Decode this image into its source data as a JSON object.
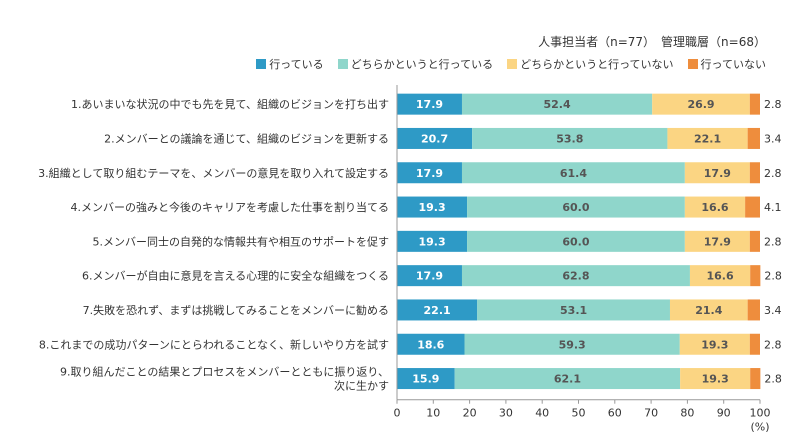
{
  "chart_data": {
    "type": "bar",
    "orientation": "horizontal",
    "stacked": true,
    "subtitle": "人事担当者（n=77）　管理職層（n=68）",
    "xlim": [
      0,
      100
    ],
    "xticks": [
      0,
      10,
      20,
      30,
      40,
      50,
      60,
      70,
      80,
      90,
      100
    ],
    "xunit": "(%)",
    "grid": false,
    "legend": "top-right",
    "categories": [
      "1.あいまいな状況の中でも先を見て、組織のビジョンを打ち出す",
      "2.メンバーとの議論を通じて、組織のビジョンを更新する",
      "3.組織として取り組むテーマを、メンバーの意見を取り入れて設定する",
      "4.メンバーの強みと今後のキャリアを考慮した仕事を割り当てる",
      "5.メンバー同士の自発的な情報共有や相互のサポートを促す",
      "6.メンバーが自由に意見を言える心理的に安全な組織をつくる",
      "7.失敗を恐れず、まずは挑戦してみることをメンバーに勧める",
      "8.これまでの成功パターンにとらわれることなく、新しいやり方を試す",
      "9.取り組んだことの結果とプロセスをメンバーとともに振り返り、\n次に生かす"
    ],
    "series": [
      {
        "name": "行っている",
        "color": "#2e9ac6",
        "label_color": "#ffffff",
        "values": [
          17.9,
          20.7,
          17.9,
          19.3,
          19.3,
          17.9,
          22.1,
          18.6,
          15.9
        ]
      },
      {
        "name": "どちらかというと行っている",
        "color": "#8fd6cb",
        "label_color": "#555555",
        "values": [
          52.4,
          53.8,
          61.4,
          60.0,
          60.0,
          62.8,
          53.1,
          59.3,
          62.1
        ]
      },
      {
        "name": "どちらかというと行っていない",
        "color": "#fbd583",
        "label_color": "#555555",
        "values": [
          26.9,
          22.1,
          17.9,
          16.6,
          17.9,
          16.6,
          21.4,
          19.3,
          19.3
        ]
      },
      {
        "name": "行っていない",
        "color": "#ee8d3d",
        "label_color": "#333333",
        "values": [
          2.8,
          3.4,
          2.8,
          4.1,
          2.8,
          2.8,
          3.4,
          2.8,
          2.8
        ]
      }
    ]
  }
}
